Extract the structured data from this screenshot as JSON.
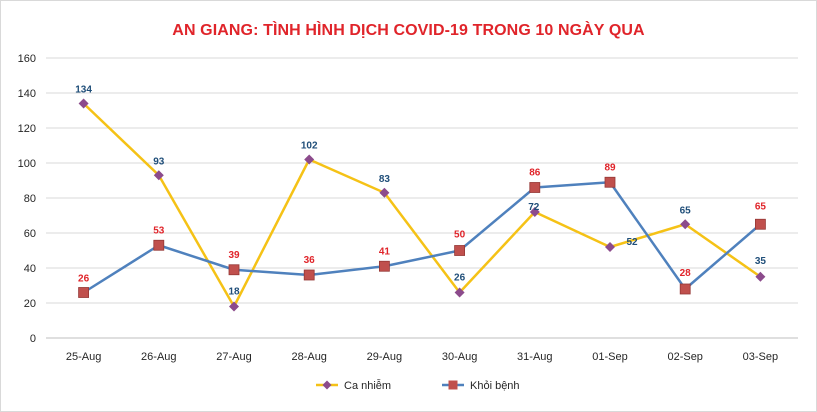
{
  "chart_data": {
    "type": "line",
    "title": "AN GIANG: TÌNH HÌNH DỊCH COVID-19 TRONG 10 NGÀY QUA",
    "categories": [
      "25-Aug",
      "26-Aug",
      "27-Aug",
      "28-Aug",
      "29-Aug",
      "30-Aug",
      "31-Aug",
      "01-Sep",
      "02-Sep",
      "03-Sep"
    ],
    "yticks": [
      "0",
      "20",
      "40",
      "60",
      "80",
      "100",
      "120",
      "140",
      "160"
    ],
    "ylim": [
      0,
      160
    ],
    "grid": true,
    "legend": "bottom",
    "series": [
      {
        "name": "Ca nhiễm",
        "values": [
          134,
          93,
          18,
          102,
          83,
          26,
          72,
          52,
          65,
          35
        ],
        "labels": [
          "134",
          "93",
          "18",
          "102",
          "83",
          "26",
          "72",
          "52",
          "65",
          "35"
        ],
        "line_color": "#f5c216",
        "marker_color": "#8c4b8c",
        "marker": "diamond",
        "label_color": "#1f4e79"
      },
      {
        "name": "Khỏi bệnh",
        "values": [
          26,
          53,
          39,
          36,
          41,
          50,
          86,
          89,
          28,
          65
        ],
        "labels": [
          "26",
          "53",
          "39",
          "36",
          "41",
          "50",
          "86",
          "89",
          "28",
          "65"
        ],
        "line_color": "#4f81bd",
        "marker_color": "#c0504d",
        "marker": "square",
        "label_color": "#e0242a"
      }
    ]
  }
}
